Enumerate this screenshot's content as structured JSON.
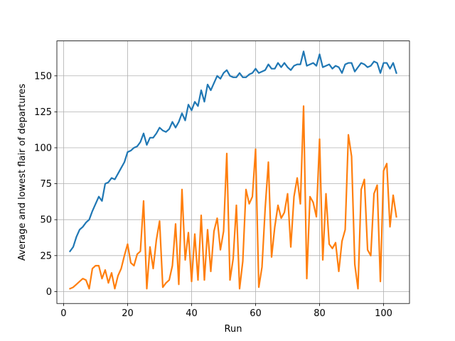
{
  "chart_data": {
    "type": "line",
    "title": "",
    "xlabel": "Run",
    "ylabel": "Average and lowest flair of departures",
    "xlim": [
      -2.1,
      108.1
    ],
    "ylim": [
      -8.3,
      174.3
    ],
    "xticks": [
      0,
      20,
      40,
      60,
      80,
      100
    ],
    "yticks": [
      0,
      25,
      50,
      75,
      100,
      125,
      150
    ],
    "grid": true,
    "legend": "none",
    "series": [
      {
        "color": "#1f77b4",
        "x": [
          2,
          3,
          4,
          5,
          6,
          7,
          8,
          9,
          10,
          11,
          12,
          13,
          14,
          15,
          16,
          17,
          18,
          19,
          20,
          21,
          22,
          23,
          24,
          25,
          26,
          27,
          28,
          29,
          30,
          31,
          32,
          33,
          34,
          35,
          36,
          37,
          38,
          39,
          40,
          41,
          42,
          43,
          44,
          45,
          46,
          47,
          48,
          49,
          50,
          51,
          52,
          53,
          54,
          55,
          56,
          57,
          58,
          59,
          60,
          61,
          62,
          63,
          64,
          65,
          66,
          67,
          68,
          69,
          70,
          71,
          72,
          73,
          74,
          75,
          76,
          77,
          78,
          79,
          80,
          81,
          82,
          83,
          84,
          85,
          86,
          87,
          88,
          89,
          90,
          91,
          92,
          93,
          94,
          95,
          96,
          97,
          98,
          99,
          100,
          101,
          102,
          103,
          104
        ],
        "values": [
          28,
          31,
          38,
          43,
          45,
          48,
          50,
          56,
          61,
          66,
          63,
          75,
          76,
          79,
          78,
          82,
          86,
          90,
          97,
          98,
          100,
          101,
          104,
          110,
          102,
          107,
          107,
          110,
          114,
          112,
          111,
          113,
          118,
          114,
          118,
          124,
          119,
          130,
          126,
          132,
          129,
          140,
          132,
          144,
          140,
          145,
          150,
          148,
          152,
          154,
          150,
          149,
          149,
          152,
          149,
          149,
          151,
          152,
          155,
          152,
          153,
          154,
          158,
          155,
          155,
          159,
          156,
          159,
          156,
          154,
          157,
          158,
          158,
          167,
          157,
          158,
          159,
          157,
          165,
          156,
          157,
          158,
          155,
          157,
          156,
          152,
          158,
          159,
          159,
          153,
          156,
          159,
          158,
          156,
          157,
          160,
          159,
          152,
          159,
          159,
          155,
          159,
          152
        ]
      },
      {
        "color": "#ff7f0e",
        "x": [
          2,
          3,
          4,
          5,
          6,
          7,
          8,
          9,
          10,
          11,
          12,
          13,
          14,
          15,
          16,
          17,
          18,
          19,
          20,
          21,
          22,
          23,
          24,
          25,
          26,
          27,
          28,
          29,
          30,
          31,
          32,
          33,
          34,
          35,
          36,
          37,
          38,
          39,
          40,
          41,
          42,
          43,
          44,
          45,
          46,
          47,
          48,
          49,
          50,
          51,
          52,
          53,
          54,
          55,
          56,
          57,
          58,
          59,
          60,
          61,
          62,
          63,
          64,
          65,
          66,
          67,
          68,
          69,
          70,
          71,
          72,
          73,
          74,
          75,
          76,
          77,
          78,
          79,
          80,
          81,
          82,
          83,
          84,
          85,
          86,
          87,
          88,
          89,
          90,
          91,
          92,
          93,
          94,
          95,
          96,
          97,
          98,
          99,
          100,
          101,
          102,
          103,
          104
        ],
        "values": [
          2,
          3,
          5,
          7,
          9,
          8,
          2,
          16,
          18,
          18,
          9,
          15,
          6,
          13,
          2,
          11,
          16,
          25,
          33,
          20,
          18,
          26,
          28,
          63,
          2,
          31,
          16,
          36,
          49,
          3,
          6,
          8,
          18,
          47,
          5,
          71,
          22,
          41,
          7,
          40,
          8,
          53,
          8,
          43,
          14,
          42,
          51,
          29,
          42,
          96,
          8,
          23,
          60,
          2,
          21,
          71,
          61,
          66,
          99,
          3,
          17,
          58,
          90,
          24,
          45,
          60,
          51,
          55,
          68,
          31,
          66,
          79,
          61,
          129,
          9,
          66,
          62,
          52,
          106,
          22,
          68,
          33,
          30,
          34,
          14,
          35,
          43,
          109,
          94,
          19,
          2,
          71,
          78,
          29,
          25,
          68,
          74,
          7,
          84,
          89,
          45,
          67,
          52
        ]
      }
    ]
  }
}
